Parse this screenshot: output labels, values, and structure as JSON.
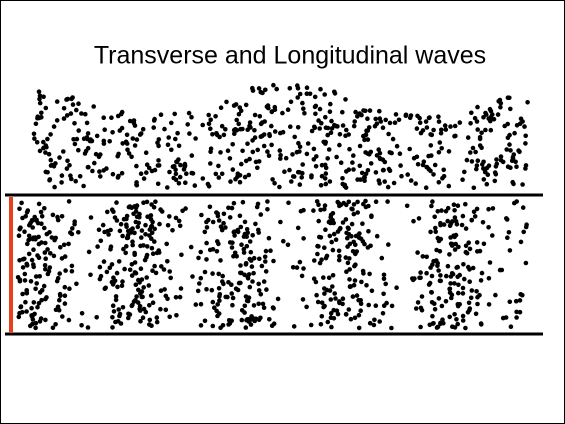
{
  "title": "Transverse and Longitudinal waves"
}
